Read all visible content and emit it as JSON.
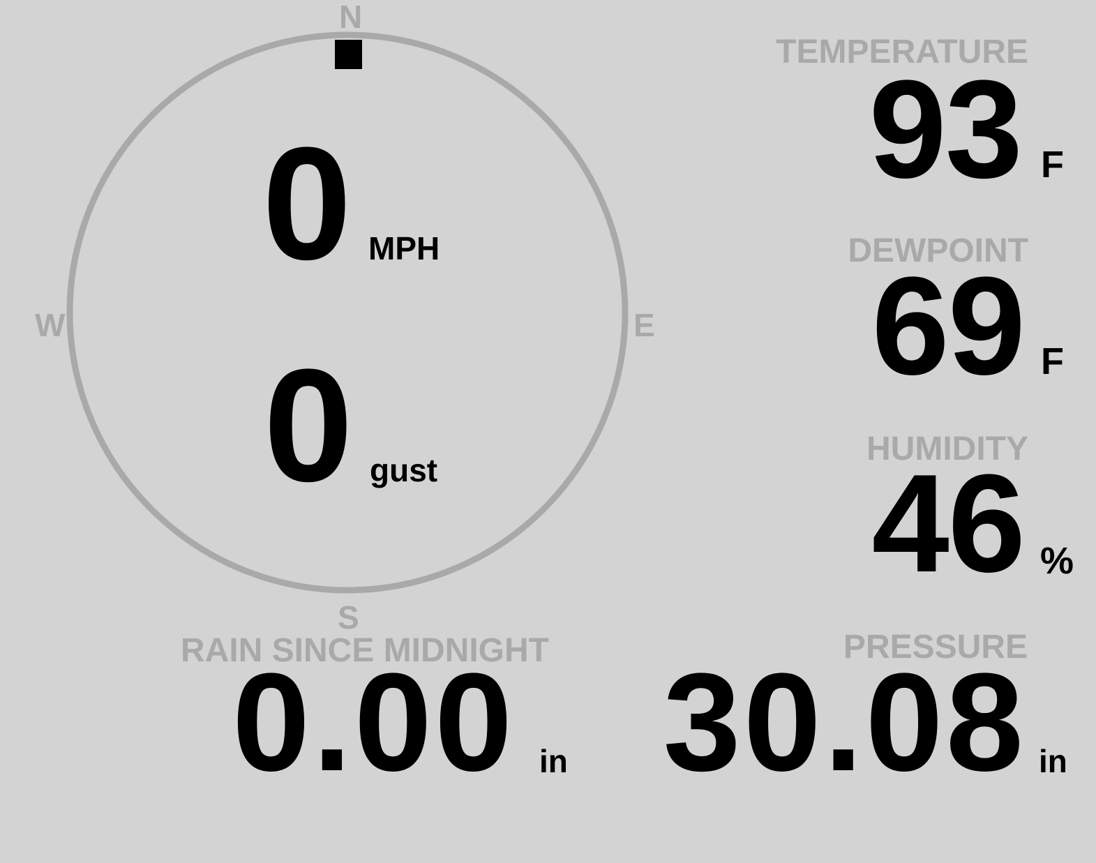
{
  "colors": {
    "background": "#d3d3d3",
    "label": "#a9a9a9",
    "value": "#000000",
    "compass_ring": "#a9a9a9",
    "direction_indicator": "#000000"
  },
  "wind": {
    "compass": {
      "north": "N",
      "east": "E",
      "south": "S",
      "west": "W"
    },
    "direction_degrees": 0,
    "speed": "0",
    "speed_unit": "MPH",
    "gust": "0",
    "gust_unit": "gust"
  },
  "temperature": {
    "label": "TEMPERATURE",
    "value": "93",
    "unit": "F"
  },
  "dewpoint": {
    "label": "DEWPOINT",
    "value": "69",
    "unit": "F"
  },
  "humidity": {
    "label": "HUMIDITY",
    "value": "46",
    "unit": "%"
  },
  "rain": {
    "label": "RAIN SINCE MIDNIGHT",
    "value": "0.00",
    "unit": "in"
  },
  "pressure": {
    "label": "PRESSURE",
    "value": "30.08",
    "unit": "in"
  }
}
